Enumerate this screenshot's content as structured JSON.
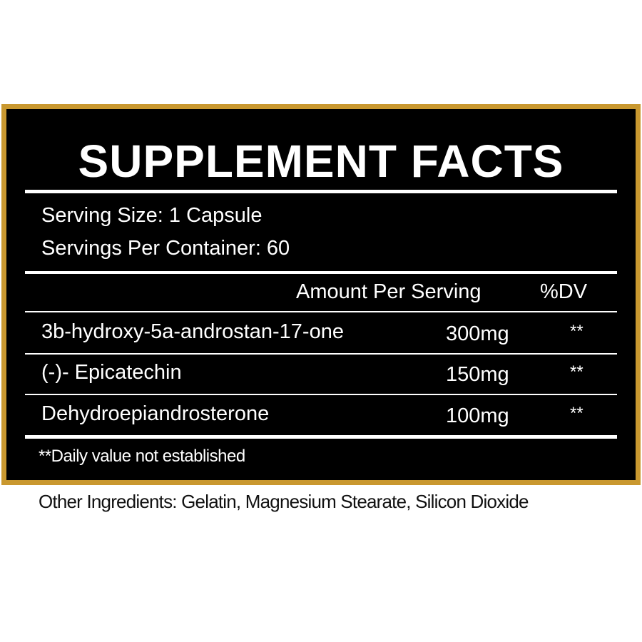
{
  "title": "SUPPLEMENT FACTS",
  "serving_size": "Serving Size: 1 Capsule",
  "servings_per_container": "Servings Per Container: 60",
  "columns": {
    "amount": "Amount Per Serving",
    "dv": "%DV"
  },
  "rows": [
    {
      "name": "3b-hydroxy-5a-androstan-17-one",
      "amount": "300mg",
      "dv": "**"
    },
    {
      "name": "(-)- Epicatechin",
      "amount": "150mg",
      "dv": "**"
    },
    {
      "name": "Dehydroepiandrosterone",
      "amount": "100mg",
      "dv": "**"
    }
  ],
  "footnote": "**Daily value not established",
  "other_ingredients": "Other Ingredients: Gelatin, Magnesium Stearate, Silicon Dioxide",
  "colors": {
    "border": "#c9982f",
    "panel": "#000000",
    "text": "#ffffff"
  }
}
